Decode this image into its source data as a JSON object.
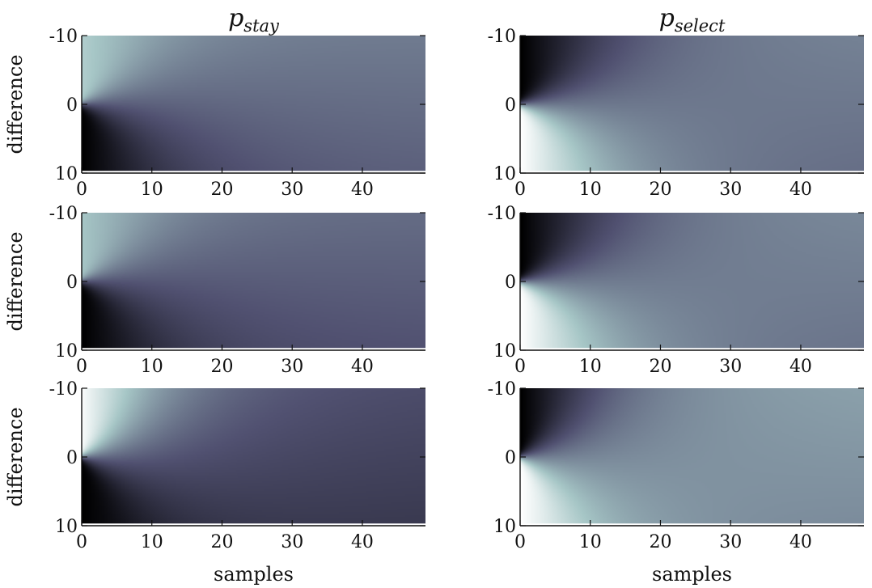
{
  "chart_data": [
    {
      "type": "heatmap",
      "column_title": {
        "base": "p",
        "subscript": "stay"
      },
      "ylabel": "difference",
      "xlabel": "",
      "x_range": [
        0,
        49
      ],
      "y_range": [
        -10,
        10
      ],
      "x_ticks": [
        "0",
        "10",
        "20",
        "30",
        "40"
      ],
      "y_ticks": [
        "-10",
        "0",
        "10"
      ],
      "colormap": "bone",
      "pattern": {
        "upper_fan_brightness": 0.78,
        "lower_fan_brightness": 0.0,
        "far_field_brightness": 0.47,
        "fan_spread": 0.6
      }
    },
    {
      "type": "heatmap",
      "column_title": {
        "base": "p",
        "subscript": "select"
      },
      "ylabel": "",
      "xlabel": "",
      "x_range": [
        0,
        49
      ],
      "y_range": [
        -10,
        10
      ],
      "x_ticks": [
        "0",
        "10",
        "20",
        "30",
        "40"
      ],
      "y_ticks": [
        "-10",
        "0",
        "10"
      ],
      "colormap": "bone",
      "pattern": {
        "upper_fan_brightness": 0.0,
        "lower_fan_brightness": 1.0,
        "far_field_brightness": 0.5,
        "fan_spread": 0.55
      }
    },
    {
      "type": "heatmap",
      "ylabel": "difference",
      "xlabel": "",
      "x_range": [
        0,
        49
      ],
      "y_range": [
        -10,
        10
      ],
      "x_ticks": [
        "0",
        "10",
        "20",
        "30",
        "40"
      ],
      "y_ticks": [
        "-10",
        "0",
        "10"
      ],
      "colormap": "bone",
      "pattern": {
        "upper_fan_brightness": 0.75,
        "lower_fan_brightness": 0.0,
        "far_field_brightness": 0.42,
        "fan_spread": 0.6
      }
    },
    {
      "type": "heatmap",
      "ylabel": "",
      "xlabel": "",
      "x_range": [
        0,
        49
      ],
      "y_range": [
        -10,
        10
      ],
      "x_ticks": [
        "0",
        "10",
        "20",
        "30",
        "40"
      ],
      "y_ticks": [
        "-10",
        "0",
        "10"
      ],
      "colormap": "bone",
      "pattern": {
        "upper_fan_brightness": 0.0,
        "lower_fan_brightness": 1.0,
        "far_field_brightness": 0.52,
        "fan_spread": 0.55
      }
    },
    {
      "type": "heatmap",
      "ylabel": "difference",
      "xlabel": "samples",
      "x_range": [
        0,
        49
      ],
      "y_range": [
        -10,
        10
      ],
      "x_ticks": [
        "0",
        "10",
        "20",
        "30",
        "40"
      ],
      "y_ticks": [
        "-10",
        "0",
        "10"
      ],
      "colormap": "bone",
      "pattern": {
        "upper_fan_brightness": 0.98,
        "lower_fan_brightness": 0.0,
        "far_field_brightness": 0.3,
        "fan_spread": 0.7
      }
    },
    {
      "type": "heatmap",
      "ylabel": "",
      "xlabel": "samples",
      "x_range": [
        0,
        49
      ],
      "y_range": [
        -10,
        10
      ],
      "x_ticks": [
        "0",
        "10",
        "20",
        "30",
        "40"
      ],
      "y_ticks": [
        "-10",
        "0",
        "10"
      ],
      "colormap": "bone",
      "pattern": {
        "upper_fan_brightness": 0.0,
        "lower_fan_brightness": 1.0,
        "far_field_brightness": 0.6,
        "fan_spread": 0.75
      }
    }
  ]
}
